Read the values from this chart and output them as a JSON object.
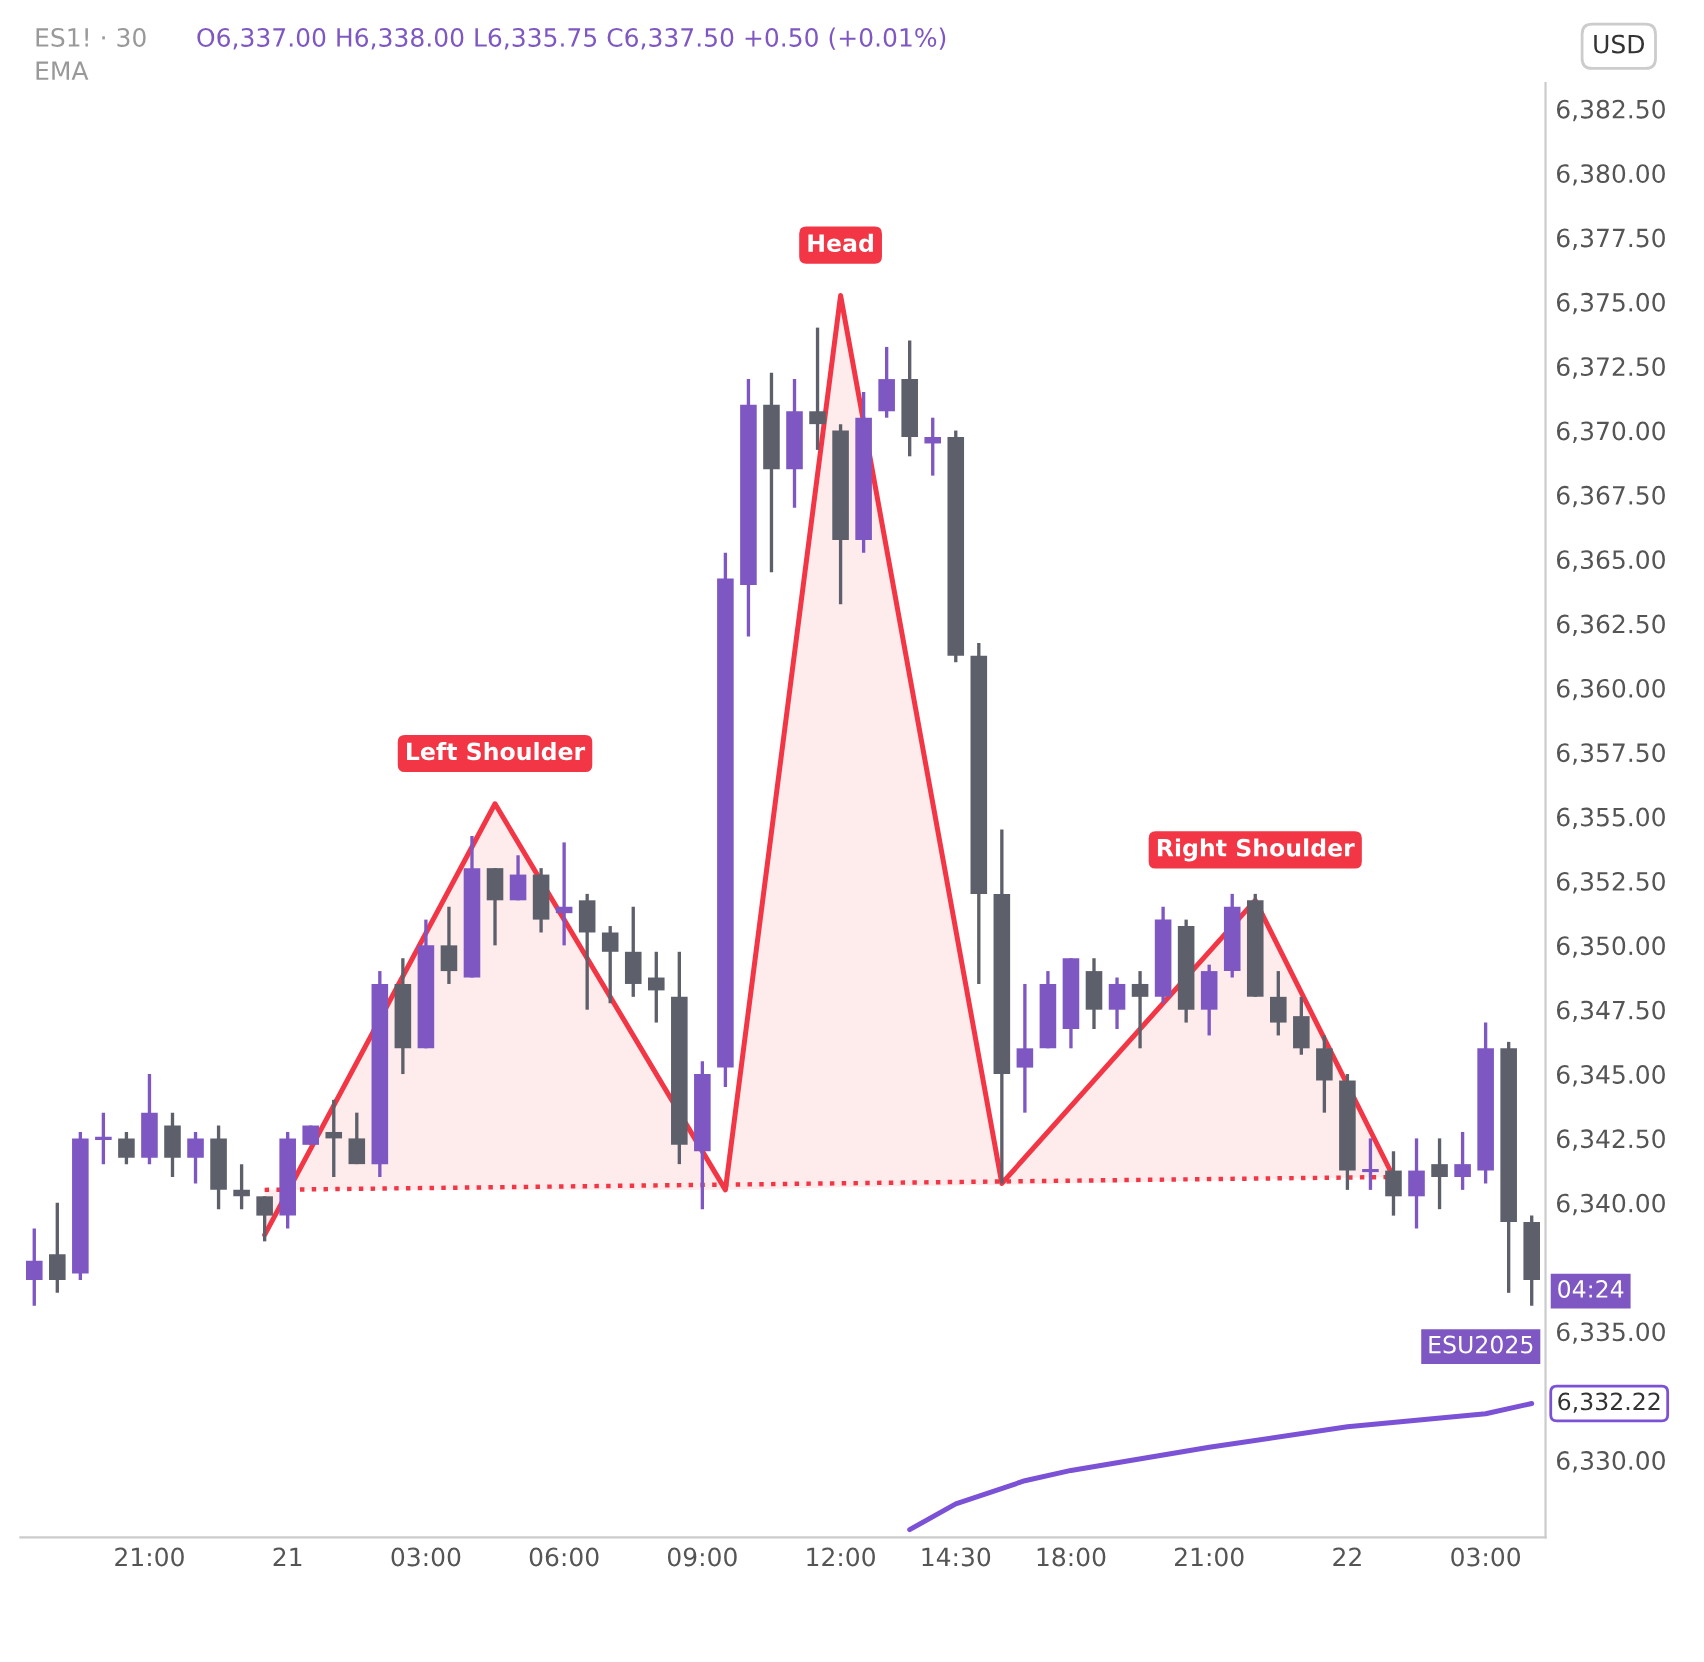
{
  "chart_data": {
    "type": "candlestick",
    "title": "ES1! · 30",
    "subtitle": "O6,337.00 H6,338.00 L6,335.75 C6,337.50 +0.50 (+0.01%)",
    "categories": [
      null,
      null,
      null,
      null,
      null,
      "21:00",
      null,
      null,
      null,
      null,
      null,
      "21",
      null,
      null,
      null,
      null,
      null,
      "03:00",
      null,
      null,
      null,
      null,
      null,
      "06:00",
      null,
      null,
      null,
      null,
      null,
      "09:00",
      null,
      null,
      null,
      null,
      null,
      "12:00",
      null,
      null,
      null,
      null,
      "14:30",
      null,
      null,
      null,
      null,
      "18:00",
      null,
      null,
      null,
      null,
      null,
      "21:00",
      null,
      null,
      null,
      null,
      null,
      "22",
      null,
      null,
      null,
      null,
      null,
      "03:00",
      null,
      null
    ],
    "ohlc": [
      [
        6337.0,
        6339.0,
        6336.0,
        6337.75
      ],
      [
        6338.0,
        6340.0,
        6336.5,
        6337.0
      ],
      [
        6337.25,
        6342.75,
        6337.0,
        6342.5
      ],
      [
        6342.5,
        6343.5,
        6341.5,
        6342.5
      ],
      [
        6342.5,
        6342.75,
        6341.5,
        6341.75
      ],
      [
        6341.75,
        6345.0,
        6341.5,
        6343.5
      ],
      [
        6343.0,
        6343.5,
        6341.0,
        6341.75
      ],
      [
        6341.75,
        6342.75,
        6340.75,
        6342.5
      ],
      [
        6342.5,
        6343.0,
        6339.75,
        6340.5
      ],
      [
        6340.5,
        6341.5,
        6339.75,
        6340.25
      ],
      [
        6340.25,
        6340.25,
        6338.5,
        6339.5
      ],
      [
        6339.5,
        6342.75,
        6339.0,
        6342.5
      ],
      [
        6342.25,
        6343.0,
        6342.25,
        6343.0
      ],
      [
        6342.75,
        6344.0,
        6341.0,
        6342.5
      ],
      [
        6342.5,
        6343.5,
        6341.5,
        6341.5
      ],
      [
        6341.5,
        6349.0,
        6341.0,
        6348.5
      ],
      [
        6348.5,
        6349.5,
        6345.0,
        6346.0
      ],
      [
        6346.0,
        6351.0,
        6346.0,
        6350.0
      ],
      [
        6350.0,
        6351.5,
        6348.5,
        6349.0
      ],
      [
        6348.75,
        6354.25,
        6348.75,
        6353.0
      ],
      [
        6353.0,
        6353.0,
        6350.0,
        6351.75
      ],
      [
        6351.75,
        6353.5,
        6351.75,
        6352.75
      ],
      [
        6352.75,
        6353.0,
        6350.5,
        6351.0
      ],
      [
        6351.25,
        6354.0,
        6350.0,
        6351.5
      ],
      [
        6351.75,
        6352.0,
        6347.5,
        6350.5
      ],
      [
        6350.5,
        6350.75,
        6347.75,
        6349.75
      ],
      [
        6349.75,
        6351.5,
        6348.0,
        6348.5
      ],
      [
        6348.75,
        6349.75,
        6347.0,
        6348.25
      ],
      [
        6348.0,
        6349.75,
        6341.5,
        6342.25
      ],
      [
        6342.0,
        6345.5,
        6339.75,
        6345.0
      ],
      [
        6345.25,
        6365.25,
        6344.5,
        6364.25
      ],
      [
        6364.0,
        6372.0,
        6362.0,
        6371.0
      ],
      [
        6371.0,
        6372.25,
        6364.5,
        6368.5
      ],
      [
        6368.5,
        6372.0,
        6367.0,
        6370.75
      ],
      [
        6370.75,
        6374.0,
        6369.25,
        6370.25
      ],
      [
        6370.0,
        6370.25,
        6363.25,
        6365.75
      ],
      [
        6365.75,
        6371.5,
        6365.25,
        6370.5
      ],
      [
        6370.75,
        6373.25,
        6370.5,
        6372.0
      ],
      [
        6372.0,
        6373.5,
        6369.0,
        6369.75
      ],
      [
        6369.5,
        6370.5,
        6368.25,
        6369.75
      ],
      [
        6369.75,
        6370.0,
        6361.0,
        6361.25
      ],
      [
        6361.25,
        6361.75,
        6348.5,
        6352.0
      ],
      [
        6352.0,
        6354.5,
        6340.75,
        6345.0
      ],
      [
        6345.25,
        6348.5,
        6343.5,
        6346.0
      ],
      [
        6346.0,
        6349.0,
        6346.0,
        6348.5
      ],
      [
        6346.75,
        6349.5,
        6346.0,
        6349.5
      ],
      [
        6349.0,
        6349.5,
        6346.75,
        6347.5
      ],
      [
        6347.5,
        6348.75,
        6346.75,
        6348.5
      ],
      [
        6348.5,
        6349.0,
        6346.0,
        6348.0
      ],
      [
        6348.0,
        6351.5,
        6347.75,
        6351.0
      ],
      [
        6350.75,
        6351.0,
        6347.0,
        6347.5
      ],
      [
        6347.5,
        6349.25,
        6346.5,
        6349.0
      ],
      [
        6349.0,
        6352.0,
        6348.75,
        6351.5
      ],
      [
        6351.75,
        6352.0,
        6348.0,
        6348.0
      ],
      [
        6348.0,
        6349.0,
        6346.5,
        6347.0
      ],
      [
        6347.25,
        6348.0,
        6345.75,
        6346.0
      ],
      [
        6346.0,
        6346.5,
        6343.5,
        6344.75
      ],
      [
        6344.75,
        6345.0,
        6340.5,
        6341.25
      ],
      [
        6341.25,
        6342.5,
        6340.5,
        6341.25
      ],
      [
        6341.25,
        6342.0,
        6339.5,
        6340.25
      ],
      [
        6340.25,
        6342.5,
        6339.0,
        6341.25
      ],
      [
        6341.5,
        6342.5,
        6339.75,
        6341.0
      ],
      [
        6341.0,
        6342.75,
        6340.5,
        6341.5
      ],
      [
        6341.25,
        6347.0,
        6340.75,
        6346.0
      ],
      [
        6346.0,
        6346.25,
        6336.5,
        6339.25
      ],
      [
        6339.25,
        6339.5,
        6336.0,
        6337.0
      ]
    ],
    "colors": [
      "#7e57c2",
      "#5d606b",
      "#7e57c2",
      "#7e57c2",
      "#5d606b",
      "#7e57c2",
      "#5d606b",
      "#7e57c2",
      "#5d606b",
      "#5d606b",
      "#5d606b",
      "#7e57c2",
      "#7e57c2",
      "#5d606b",
      "#5d606b",
      "#7e57c2",
      "#5d606b",
      "#7e57c2",
      "#5d606b",
      "#7e57c2",
      "#5d606b",
      "#7e57c2",
      "#5d606b",
      "#7e57c2",
      "#5d606b",
      "#5d606b",
      "#5d606b",
      "#5d606b",
      "#5d606b",
      "#7e57c2",
      "#7e57c2",
      "#7e57c2",
      "#5d606b",
      "#7e57c2",
      "#5d606b",
      "#5d606b",
      "#7e57c2",
      "#7e57c2",
      "#5d606b",
      "#7e57c2",
      "#5d606b",
      "#5d606b",
      "#5d606b",
      "#7e57c2",
      "#7e57c2",
      "#7e57c2",
      "#5d606b",
      "#7e57c2",
      "#5d606b",
      "#7e57c2",
      "#5d606b",
      "#7e57c2",
      "#7e57c2",
      "#5d606b",
      "#5d606b",
      "#5d606b",
      "#5d606b",
      "#5d606b",
      "#7e57c2",
      "#5d606b",
      "#7e57c2",
      "#5d606b",
      "#7e57c2",
      "#7e57c2",
      "#5d606b",
      "#5d606b"
    ],
    "series": [
      {
        "type": "line",
        "color": "#7b52d6",
        "values": [
          null,
          null,
          null,
          null,
          null,
          null,
          null,
          null,
          null,
          null,
          null,
          null,
          null,
          null,
          null,
          null,
          null,
          null,
          null,
          null,
          null,
          null,
          null,
          null,
          null,
          null,
          null,
          null,
          null,
          null,
          null,
          null,
          null,
          null,
          null,
          null,
          null,
          null,
          6327.3,
          null,
          6328.3,
          null,
          null,
          6329.2,
          null,
          6329.6,
          null,
          null,
          null,
          null,
          null,
          6330.5,
          null,
          null,
          null,
          null,
          null,
          6331.3,
          null,
          null,
          null,
          null,
          null,
          6331.8,
          null,
          6332.2
        ]
      },
      {
        "type": "line",
        "color": "#f23645",
        "values": [
          null,
          null,
          null,
          null,
          null,
          null,
          null,
          null,
          null,
          null,
          6338.75,
          null,
          null,
          null,
          null,
          null,
          null,
          null,
          null,
          null,
          6355.5,
          null,
          null,
          null,
          null,
          null,
          null,
          null,
          null,
          null,
          6340.5,
          null,
          null,
          null,
          null,
          6375.25,
          null,
          null,
          null,
          null,
          null,
          null,
          6340.75,
          null,
          null,
          null,
          null,
          null,
          null,
          null,
          null,
          null,
          null,
          6351.75,
          null,
          null,
          null,
          null,
          null,
          6341.0,
          null,
          null,
          null,
          null,
          null,
          null
        ],
        "lower": [
          null,
          null,
          null,
          null,
          null,
          null,
          null,
          null,
          null,
          null,
          6340.5,
          null,
          null,
          null,
          null,
          null,
          null,
          null,
          null,
          null,
          6340.5,
          null,
          null,
          null,
          null,
          null,
          null,
          null,
          null,
          null,
          6340.5,
          null,
          null,
          null,
          null,
          6340.6,
          null,
          null,
          null,
          null,
          null,
          null,
          6340.7,
          null,
          null,
          null,
          null,
          null,
          null,
          null,
          null,
          null,
          null,
          6340.9,
          null,
          null,
          null,
          null,
          null,
          6341.0,
          null,
          null,
          null,
          null,
          null,
          null
        ],
        "upper": [
          null,
          null,
          null,
          null,
          null,
          null,
          null,
          null,
          null,
          null,
          6338.75,
          null,
          null,
          null,
          null,
          null,
          null,
          null,
          null,
          null,
          6355.5,
          null,
          null,
          null,
          null,
          null,
          null,
          null,
          null,
          null,
          6340.5,
          null,
          null,
          null,
          null,
          6375.25,
          null,
          null,
          null,
          null,
          null,
          null,
          6340.75,
          null,
          null,
          null,
          null,
          null,
          null,
          null,
          null,
          null,
          null,
          6351.75,
          null,
          null,
          null,
          null,
          null,
          6341.0,
          null,
          null,
          null,
          null,
          null,
          null
        ]
      },
      {
        "type": "line",
        "color": "#f23645",
        "line_style": "dotted",
        "values": [
          null,
          null,
          null,
          null,
          null,
          null,
          null,
          null,
          null,
          null,
          6340.5,
          null,
          null,
          null,
          null,
          null,
          null,
          null,
          null,
          null,
          null,
          null,
          null,
          null,
          null,
          null,
          null,
          null,
          null,
          null,
          null,
          null,
          null,
          null,
          null,
          null,
          null,
          null,
          null,
          null,
          null,
          null,
          null,
          null,
          null,
          null,
          null,
          null,
          null,
          null,
          null,
          null,
          null,
          null,
          null,
          null,
          null,
          null,
          null,
          6341.0,
          null,
          null,
          null,
          null,
          null,
          null
        ]
      }
    ],
    "ylim": [
      6327.0,
      6383.5
    ],
    "yticks": [
      {
        "value": 6330,
        "label": "6,330.00"
      },
      {
        "value": 6335,
        "label": "6,335.00"
      },
      {
        "value": 6340,
        "label": "6,340.00"
      },
      {
        "value": 6342.5,
        "label": "6,342.50"
      },
      {
        "value": 6345,
        "label": "6,345.00"
      },
      {
        "value": 6347.5,
        "label": "6,347.50"
      },
      {
        "value": 6350,
        "label": "6,350.00"
      },
      {
        "value": 6352.5,
        "label": "6,352.50"
      },
      {
        "value": 6355,
        "label": "6,355.00"
      },
      {
        "value": 6357.5,
        "label": "6,357.50"
      },
      {
        "value": 6360,
        "label": "6,360.00"
      },
      {
        "value": 6362.5,
        "label": "6,362.50"
      },
      {
        "value": 6365,
        "label": "6,365.00"
      },
      {
        "value": 6367.5,
        "label": "6,367.50"
      },
      {
        "value": 6370,
        "label": "6,370.00"
      },
      {
        "value": 6372.5,
        "label": "6,372.50"
      },
      {
        "value": 6375,
        "label": "6,375.00"
      },
      {
        "value": 6377.5,
        "label": "6,377.50"
      },
      {
        "value": 6380,
        "label": "6,380.00"
      },
      {
        "value": 6382.5,
        "label": "6,382.50"
      }
    ],
    "annotations": [
      {
        "text": "Left Shoulder",
        "y": 6355.5
      },
      {
        "text": "Head",
        "y": 6375.25
      },
      {
        "text": "Right Shoulder",
        "y": 6351.75
      },
      "EMA",
      "USD",
      "ESU2025",
      "04:24",
      "6,332.22"
    ]
  }
}
